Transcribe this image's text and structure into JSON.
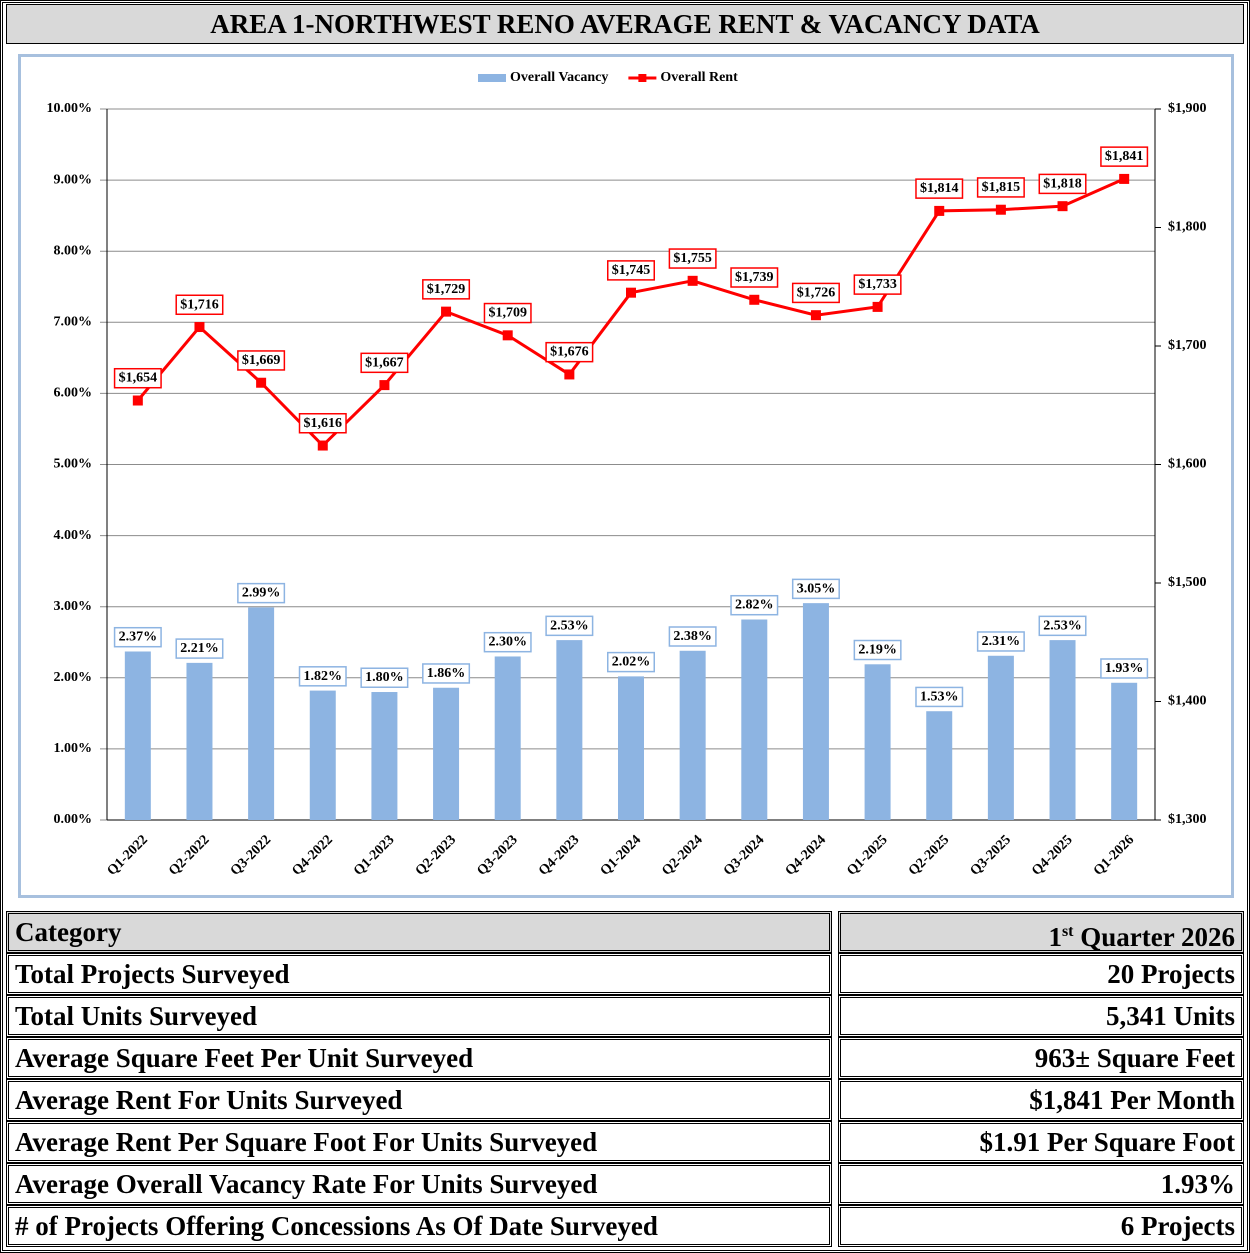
{
  "title": "AREA 1-NORTHWEST RENO AVERAGE RENT & VACANCY DATA",
  "chart_data": {
    "type": "combo",
    "categories": [
      "Q1-2022",
      "Q2-2022",
      "Q3-2022",
      "Q4-2022",
      "Q1-2023",
      "Q2-2023",
      "Q3-2023",
      "Q4-2023",
      "Q1-2024",
      "Q2-2024",
      "Q3-2024",
      "Q4-2024",
      "Q1-2025",
      "Q2-2025",
      "Q3-2025",
      "Q4-2025",
      "Q1-2026"
    ],
    "series": [
      {
        "name": "Overall Vacancy",
        "type": "bar",
        "color": "#8db4e2",
        "label_border": "#8db4e2",
        "values": [
          2.37,
          2.21,
          2.99,
          1.82,
          1.8,
          1.86,
          2.3,
          2.53,
          2.02,
          2.38,
          2.82,
          3.05,
          2.19,
          1.53,
          2.31,
          2.53,
          1.93
        ],
        "value_labels": [
          "2.37%",
          "2.21%",
          "2.99%",
          "1.82%",
          "1.80%",
          "1.86%",
          "2.30%",
          "2.53%",
          "2.02%",
          "2.38%",
          "2.82%",
          "3.05%",
          "2.19%",
          "1.53%",
          "2.31%",
          "2.53%",
          "1.93%"
        ]
      },
      {
        "name": "Overall Rent",
        "type": "line",
        "axis": "y2",
        "color": "#ff0000",
        "label_border": "#ff0000",
        "values": [
          1654,
          1716,
          1669,
          1616,
          1667,
          1729,
          1709,
          1676,
          1745,
          1755,
          1739,
          1726,
          1733,
          1814,
          1815,
          1818,
          1841
        ],
        "value_labels": [
          "$1,654",
          "$1,716",
          "$1,669",
          "$1,616",
          "$1,667",
          "$1,729",
          "$1,709",
          "$1,676",
          "$1,745",
          "$1,755",
          "$1,739",
          "$1,726",
          "$1,733",
          "$1,814",
          "$1,815",
          "$1,818",
          "$1,841"
        ]
      }
    ],
    "ylim": [
      0,
      10
    ],
    "yticks": [
      {
        "value": 0,
        "label": "0.00%"
      },
      {
        "value": 1,
        "label": "1.00%"
      },
      {
        "value": 2,
        "label": "2.00%"
      },
      {
        "value": 3,
        "label": "3.00%"
      },
      {
        "value": 4,
        "label": "4.00%"
      },
      {
        "value": 5,
        "label": "5.00%"
      },
      {
        "value": 6,
        "label": "6.00%"
      },
      {
        "value": 7,
        "label": "7.00%"
      },
      {
        "value": 8,
        "label": "8.00%"
      },
      {
        "value": 9,
        "label": "9.00%"
      },
      {
        "value": 10,
        "label": "10.00%"
      }
    ],
    "y2lim": [
      1300,
      1900
    ],
    "y2ticks": [
      {
        "value": 1300,
        "label": "$1,300"
      },
      {
        "value": 1400,
        "label": "$1,400"
      },
      {
        "value": 1500,
        "label": "$1,500"
      },
      {
        "value": 1600,
        "label": "$1,600"
      },
      {
        "value": 1700,
        "label": "$1,700"
      },
      {
        "value": 1800,
        "label": "$1,800"
      },
      {
        "value": 1900,
        "label": "$1,900"
      }
    ],
    "grid": true,
    "legend": "top"
  },
  "table": {
    "header": {
      "category": "Category",
      "period": {
        "number": "1",
        "suffix": "st",
        "rest": "Quarter 2026"
      }
    },
    "rows": [
      [
        "Total Projects Surveyed",
        "20 Projects"
      ],
      [
        "Total Units Surveyed",
        "5,341 Units"
      ],
      [
        "Average Square Feet Per Unit Surveyed",
        "963± Square Feet"
      ],
      [
        "Average Rent For Units Surveyed",
        "$1,841 Per Month"
      ],
      [
        "Average Rent Per Square Foot For Units Surveyed",
        "$1.91 Per Square Foot"
      ],
      [
        "Average Overall Vacancy Rate For Units Surveyed",
        "1.93%"
      ],
      [
        "# of Projects Offering Concessions As Of Date Surveyed",
        "6 Projects"
      ]
    ]
  }
}
